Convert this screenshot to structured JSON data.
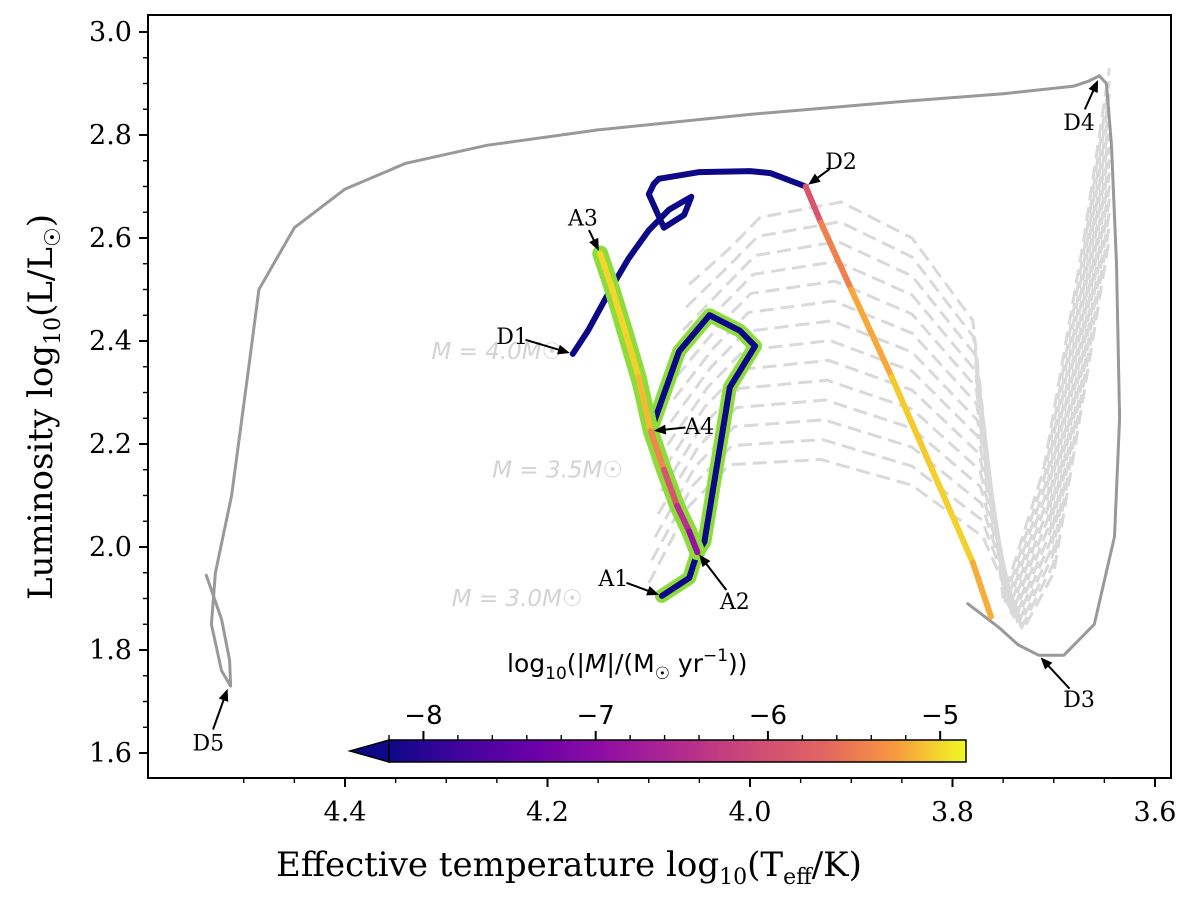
{
  "chart_data": {
    "type": "line",
    "title": "",
    "xlabel_prefix": "Effective temperature log",
    "xlabel_sub": "10",
    "xlabel_suffix": "(T",
    "xlabel_sub2": "eff",
    "xlabel_end": "/K)",
    "ylabel_prefix": "Luminosity log",
    "ylabel_sub": "10",
    "ylabel_suffix": "(L/L",
    "ylabel_end": ")",
    "xlim": [
      4.58,
      3.58
    ],
    "ylim": [
      1.55,
      3.03
    ],
    "x_ticks": [
      4.4,
      4.2,
      4.0,
      3.8,
      3.6
    ],
    "x_tick_labels": [
      "4.4",
      "4.2",
      "4.0",
      "3.8",
      "3.6"
    ],
    "y_ticks": [
      1.6,
      1.8,
      2.0,
      2.2,
      2.4,
      2.6,
      2.8,
      3.0
    ],
    "y_tick_labels": [
      "1.6",
      "1.8",
      "2.0",
      "2.2",
      "2.4",
      "2.6",
      "2.8",
      "3.0"
    ],
    "mass_labels": [
      "M = 4.0M☉",
      "M = 3.5M☉",
      "M = 3.0M☉"
    ],
    "mass_label_points": [
      [
        4.25,
        2.365
      ],
      [
        4.19,
        2.135
      ],
      [
        4.23,
        1.885
      ]
    ],
    "annotations": [
      {
        "text": "D1",
        "x": 4.175,
        "y": 2.375,
        "tx": 4.235,
        "ty": 2.41
      },
      {
        "text": "D2",
        "x": 3.945,
        "y": 2.7,
        "tx": 3.91,
        "ty": 2.75
      },
      {
        "text": "D3",
        "x": 3.715,
        "y": 1.79,
        "tx": 3.675,
        "ty": 1.705
      },
      {
        "text": "D4",
        "x": 3.655,
        "y": 2.912,
        "tx": 3.675,
        "ty": 2.825
      },
      {
        "text": "D5",
        "x": 4.515,
        "y": 1.73,
        "tx": 4.535,
        "ty": 1.62
      },
      {
        "text": "A1",
        "x": 4.087,
        "y": 1.905,
        "tx": 4.135,
        "ty": 1.94
      },
      {
        "text": "A2",
        "x": 4.052,
        "y": 1.99,
        "tx": 4.015,
        "ty": 1.895
      },
      {
        "text": "A3",
        "x": 4.148,
        "y": 2.57,
        "tx": 4.165,
        "ty": 2.64
      },
      {
        "text": "A4",
        "x": 4.098,
        "y": 2.225,
        "tx": 4.05,
        "ty": 2.235
      }
    ],
    "colorbar": {
      "label": "log10(|Ṁ|/(M☉ yr⁻¹))",
      "label_parts": [
        "log",
        "10",
        "(|",
        "M",
        "|/(M",
        "☉",
        " yr",
        "−1",
        "))"
      ],
      "min": -8.2,
      "max": -4.85,
      "ticks": [
        -8,
        -7,
        -6,
        -5
      ],
      "tick_labels": [
        "−8",
        "−7",
        "−6",
        "−5"
      ],
      "colormap": "plasma",
      "extend": "min"
    },
    "series": [
      {
        "name": "grey-track",
        "style": "solid",
        "color": "#999999",
        "x": [
          4.537,
          4.522,
          4.514,
          4.513,
          4.522,
          4.532,
          4.528,
          4.512,
          4.495,
          4.485,
          4.45,
          4.4,
          4.34,
          4.26,
          4.15,
          4.0,
          3.85,
          3.75,
          3.68,
          3.665,
          3.655,
          3.648,
          3.643,
          3.638,
          3.635,
          3.64,
          3.66,
          3.69,
          3.715,
          3.735,
          3.755,
          3.785
        ],
        "y": [
          1.945,
          1.86,
          1.78,
          1.73,
          1.76,
          1.85,
          1.95,
          2.1,
          2.35,
          2.5,
          2.62,
          2.695,
          2.745,
          2.78,
          2.81,
          2.84,
          2.865,
          2.88,
          2.895,
          2.905,
          2.915,
          2.9,
          2.78,
          2.55,
          2.25,
          2.02,
          1.85,
          1.79,
          1.79,
          1.81,
          1.845,
          1.89
        ]
      },
      {
        "name": "mt-track-1",
        "style": "solid",
        "color": "#0d0887",
        "x": [
          4.175,
          4.16,
          4.135,
          4.12,
          4.1,
          4.08,
          4.058,
          4.065,
          4.085,
          4.1,
          4.095,
          4.09
        ],
        "y": [
          2.375,
          2.42,
          2.51,
          2.56,
          2.615,
          2.655,
          2.68,
          2.645,
          2.62,
          2.685,
          2.705,
          2.715
        ]
      },
      {
        "name": "mt-track-2",
        "style": "solid",
        "color": "#0d0887",
        "x": [
          4.09,
          4.05,
          4.0,
          3.98,
          3.945
        ],
        "y": [
          2.715,
          2.728,
          2.73,
          2.726,
          2.7
        ]
      },
      {
        "name": "mt-track-3",
        "style": "solid",
        "color": "#0d0887",
        "x": [
          4.087,
          4.06,
          4.052,
          4.045,
          4.02,
          3.995,
          4.01,
          4.04,
          4.07,
          4.098
        ],
        "y": [
          1.905,
          1.94,
          1.99,
          2.01,
          2.31,
          2.39,
          2.42,
          2.45,
          2.38,
          2.225
        ]
      },
      {
        "name": "mt-track-4",
        "style": "solid",
        "color": "#0d0887",
        "x": [
          4.098,
          4.11,
          4.125,
          4.14,
          4.148
        ],
        "y": [
          2.225,
          2.32,
          2.42,
          2.52,
          2.57
        ]
      },
      {
        "name": "D2-D3-path",
        "style": "colored",
        "x": [
          3.945,
          3.93,
          3.9,
          3.86,
          3.82,
          3.78,
          3.762
        ],
        "y": [
          2.7,
          2.63,
          2.5,
          2.33,
          2.15,
          1.97,
          1.865
        ],
        "mdot": [
          -6.2,
          -5.6,
          -5.3,
          -5.1,
          -5.0,
          -5.05,
          -5.3
        ]
      },
      {
        "name": "A3-A4-A1-path",
        "style": "colored",
        "x": [
          4.148,
          4.136,
          4.122,
          4.11,
          4.098,
          4.085,
          4.072,
          4.06,
          4.052
        ],
        "y": [
          2.57,
          2.5,
          2.41,
          2.33,
          2.225,
          2.15,
          2.08,
          2.03,
          1.99
        ],
        "mdot": [
          -5.0,
          -5.0,
          -5.0,
          -5.05,
          -5.2,
          -5.6,
          -6.2,
          -6.7,
          -7.1
        ]
      }
    ],
    "grey_tracks_count": 14
  }
}
